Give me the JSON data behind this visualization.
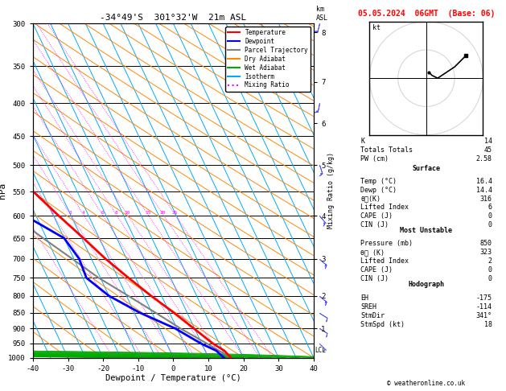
{
  "title_left": "-34°49'S  301°32'W  21m ASL",
  "title_date": "05.05.2024  06GMT  (Base: 06)",
  "xlabel": "Dewpoint / Temperature (°C)",
  "ylabel_left": "hPa",
  "temp_color": "#ff0000",
  "dewp_color": "#0000ff",
  "parcel_color": "#808080",
  "dry_adiabat_color": "#ff8800",
  "wet_adiabat_color": "#00aa00",
  "isotherm_color": "#00aaff",
  "mixing_ratio_color": "#ff00ff",
  "legend_items": [
    "Temperature",
    "Dewpoint",
    "Parcel Trajectory",
    "Dry Adiabat",
    "Wet Adiabat",
    "Isotherm",
    "Mixing Ratio"
  ],
  "pressure_ticks": [
    300,
    350,
    400,
    450,
    500,
    550,
    600,
    650,
    700,
    750,
    800,
    850,
    900,
    950,
    1000
  ],
  "km_ticks": [
    1,
    2,
    3,
    4,
    5,
    6,
    7,
    8
  ],
  "km_pressures": [
    900,
    800,
    700,
    600,
    500,
    430,
    370,
    310
  ],
  "temp_profile_p": [
    1000,
    975,
    950,
    900,
    850,
    800,
    750,
    700,
    650,
    600,
    550,
    500,
    450,
    400,
    350,
    300
  ],
  "temp_profile_t": [
    16.4,
    15.5,
    13.2,
    9.8,
    6.2,
    2.0,
    -2.0,
    -6.0,
    -9.5,
    -13.5,
    -17.5,
    -22.0,
    -27.0,
    -33.0,
    -41.0,
    -49.0
  ],
  "dewp_profile_p": [
    1000,
    975,
    950,
    900,
    850,
    800,
    750,
    700,
    650,
    600,
    550,
    500,
    450,
    400,
    350,
    300
  ],
  "dewp_profile_t": [
    14.4,
    13.2,
    9.8,
    4.5,
    -3.5,
    -10.0,
    -14.0,
    -13.5,
    -15.0,
    -23.0,
    -34.0,
    -41.0,
    -50.0,
    -54.0,
    -58.0,
    -62.0
  ],
  "parcel_profile_p": [
    1000,
    950,
    900,
    850,
    800,
    750,
    700,
    650,
    600,
    550,
    500,
    450,
    400,
    350,
    300
  ],
  "parcel_profile_t": [
    16.4,
    11.5,
    6.0,
    1.0,
    -4.5,
    -10.5,
    -15.5,
    -21.0,
    -26.5,
    -32.5,
    -38.5,
    -45.5,
    -52.5,
    -60.0,
    -68.0
  ],
  "mixing_ratio_values": [
    1,
    2,
    3,
    4,
    6,
    8,
    10,
    15,
    20,
    25
  ],
  "lcl_pressure": 975,
  "PMIN": 300,
  "PMAX": 1000,
  "TMIN": -40,
  "TMAX": 40,
  "SKEW": 45,
  "stats_K": 14,
  "stats_TT": 45,
  "stats_PW": "2.58",
  "surf_temp": "16.4",
  "surf_dewp": "14.4",
  "surf_thetae": 316,
  "surf_LI": 6,
  "surf_CAPE": 0,
  "surf_CIN": 0,
  "mu_pres": 850,
  "mu_thetae": 323,
  "mu_LI": 2,
  "mu_CAPE": 0,
  "mu_CIN": 0,
  "hodo_EH": -175,
  "hodo_SREH": -114,
  "hodo_StmDir": "341°",
  "hodo_StmSpd": 18,
  "copyright": "© weatheronline.co.uk"
}
